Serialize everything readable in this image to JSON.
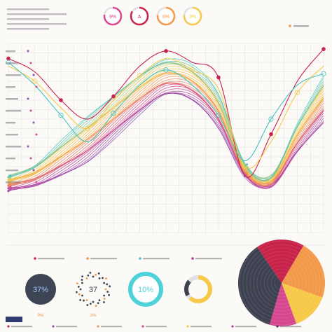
{
  "palette": {
    "bg": "#fbfaf7",
    "grid": "#e3dfe6",
    "text": "#7a7480",
    "dark": "#3d4150",
    "red": "#c8234a",
    "pink": "#d6478f",
    "magenta": "#b83a8a",
    "orange": "#f2994a",
    "yellow": "#f7c948",
    "teal": "#45c4c1",
    "cyan": "#4fd1d9",
    "purple": "#8b4fb3",
    "navy": "#2f3e6e"
  },
  "header": {
    "gauges": [
      {
        "label": "9%",
        "value": 0.09,
        "color": "#d6478f"
      },
      {
        "label": "A",
        "value": 0.35,
        "color": "#c8234a"
      },
      {
        "label": "6%",
        "value": 0.06,
        "color": "#f2994a"
      },
      {
        "label": "3%",
        "value": 0.03,
        "color": "#f7c948"
      }
    ]
  },
  "chart_data": [
    {
      "type": "line",
      "title": "",
      "xlabel": "",
      "ylabel": "",
      "x": [
        0,
        1,
        2,
        3,
        4,
        5,
        6,
        7,
        8,
        9,
        10,
        11,
        12
      ],
      "ylim": [
        0,
        100
      ],
      "grid": true,
      "legend": "top-right",
      "series_count": 34,
      "series": [
        {
          "name": "",
          "color": "#c8234a",
          "values": [
            92,
            85,
            70,
            60,
            72,
            88,
            96,
            90,
            82,
            30,
            52,
            80,
            97
          ]
        },
        {
          "name": "",
          "color": "#f7c948",
          "values": [
            88,
            80,
            66,
            55,
            70,
            83,
            92,
            86,
            76,
            35,
            48,
            74,
            88
          ]
        },
        {
          "name": "",
          "color": "#45c4c1",
          "values": [
            90,
            78,
            62,
            48,
            63,
            78,
            86,
            78,
            62,
            38,
            60,
            78,
            84
          ]
        }
      ],
      "band": {
        "base": [
          22,
          24,
          30,
          38,
          50,
          62,
          72,
          70,
          56,
          30,
          24,
          42,
          58
        ],
        "top": [
          30,
          36,
          48,
          60,
          72,
          84,
          92,
          88,
          72,
          36,
          30,
          58,
          82
        ],
        "colors": [
          "#8b4fb3",
          "#d6478f",
          "#f2994a",
          "#f7c948",
          "#45c4c1"
        ]
      }
    },
    {
      "type": "pie",
      "title": "",
      "labels": [
        "",
        "",
        "",
        "",
        ""
      ],
      "values": [
        18,
        22,
        14,
        10,
        36
      ],
      "colors": [
        "#c8234a",
        "#f2994a",
        "#f7c948",
        "#d6478f",
        "#3d4150"
      ]
    }
  ],
  "kpi_cards": [
    {
      "value": "37%",
      "fraction": 0.37,
      "legend": "",
      "footer": "9%",
      "style": "dark"
    },
    {
      "value": "37",
      "fraction": 0.37,
      "legend": "",
      "footer": "3%",
      "style": "dots"
    },
    {
      "value": "10%",
      "fraction": 0.1,
      "legend": "",
      "footer": "",
      "style": "teal"
    },
    {
      "value": "",
      "fraction": 0.62,
      "legend": "",
      "footer": "",
      "style": "ring"
    }
  ]
}
